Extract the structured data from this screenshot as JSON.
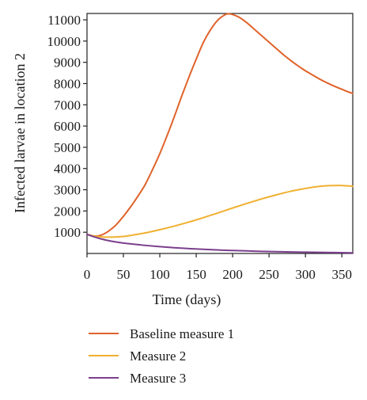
{
  "chart_data": {
    "type": "line",
    "title": "",
    "xlabel": "Time (days)",
    "ylabel": "Infected larvae in location 2",
    "xlim": [
      0,
      365
    ],
    "ylim": [
      0,
      11300
    ],
    "x_ticks": [
      0,
      50,
      100,
      150,
      200,
      250,
      300,
      350
    ],
    "y_ticks": [
      1000,
      2000,
      3000,
      4000,
      5000,
      6000,
      7000,
      8000,
      9000,
      10000,
      11000
    ],
    "grid": false,
    "legend_position": "bottom",
    "series": [
      {
        "name": "Baseline measure 1",
        "color": "#E0622A",
        "x": [
          0,
          10,
          20,
          30,
          40,
          50,
          60,
          70,
          80,
          90,
          100,
          110,
          120,
          130,
          140,
          150,
          160,
          170,
          180,
          190,
          195,
          200,
          210,
          220,
          230,
          240,
          250,
          260,
          270,
          280,
          290,
          300,
          310,
          320,
          330,
          340,
          350,
          360,
          365
        ],
        "y": [
          900,
          820,
          870,
          1060,
          1350,
          1750,
          2200,
          2700,
          3250,
          3950,
          4700,
          5550,
          6450,
          7400,
          8300,
          9150,
          9950,
          10550,
          11000,
          11250,
          11280,
          11250,
          11100,
          10850,
          10550,
          10250,
          9950,
          9650,
          9350,
          9080,
          8830,
          8600,
          8400,
          8200,
          8030,
          7870,
          7730,
          7590,
          7530
        ]
      },
      {
        "name": "Measure 2",
        "color": "#F0B030",
        "x": [
          0,
          10,
          20,
          30,
          40,
          50,
          60,
          80,
          100,
          120,
          140,
          160,
          180,
          200,
          220,
          240,
          260,
          280,
          300,
          310,
          320,
          330,
          340,
          350,
          360,
          365
        ],
        "y": [
          900,
          820,
          780,
          770,
          780,
          800,
          850,
          970,
          1120,
          1290,
          1480,
          1690,
          1910,
          2140,
          2360,
          2570,
          2760,
          2930,
          3060,
          3120,
          3160,
          3190,
          3200,
          3200,
          3180,
          3160
        ]
      },
      {
        "name": "Measure 3",
        "color": "#7B3F8C",
        "x": [
          0,
          10,
          20,
          30,
          40,
          50,
          60,
          80,
          100,
          120,
          140,
          160,
          180,
          200,
          220,
          240,
          260,
          280,
          300,
          320,
          340,
          365
        ],
        "y": [
          900,
          780,
          680,
          600,
          540,
          490,
          450,
          380,
          320,
          270,
          230,
          195,
          165,
          140,
          120,
          100,
          85,
          70,
          60,
          50,
          40,
          30
        ]
      }
    ]
  }
}
